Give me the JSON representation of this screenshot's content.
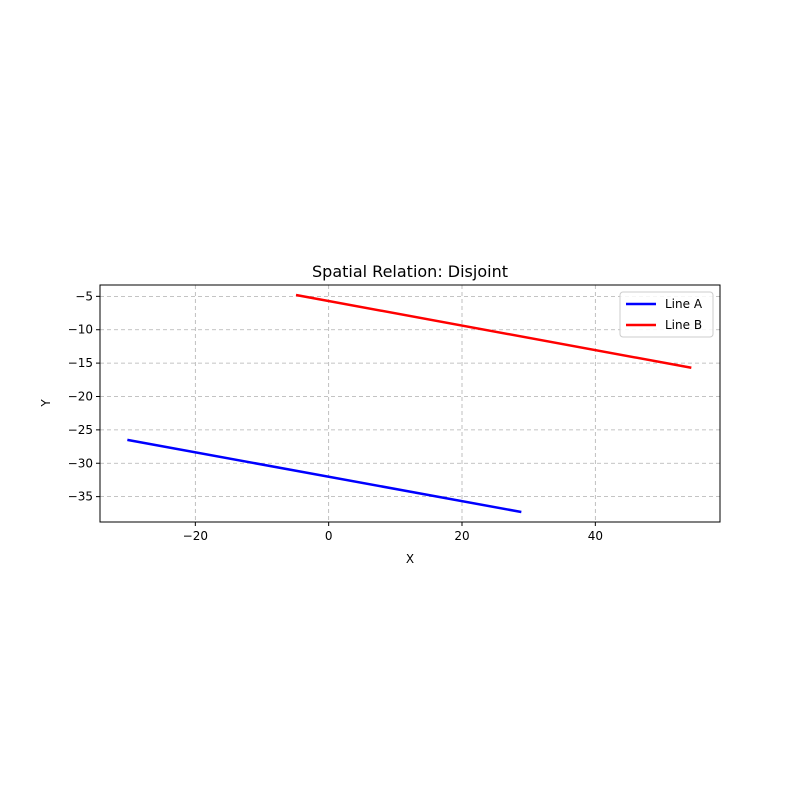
{
  "chart_data": {
    "type": "line",
    "title": "Spatial Relation: Disjoint",
    "xlabel": "X",
    "ylabel": "Y",
    "xlim": [
      -34.3,
      58.7
    ],
    "ylim": [
      -38.8,
      -3.3
    ],
    "xticks": [
      -20,
      0,
      20,
      40
    ],
    "yticks": [
      -5,
      -10,
      -15,
      -20,
      -25,
      -30,
      -35
    ],
    "grid": true,
    "legend_position": "top-right",
    "series": [
      {
        "name": "Line A",
        "color": "#0000ff",
        "x": [
          -30.2,
          28.9
        ],
        "y": [
          -26.5,
          -37.3
        ]
      },
      {
        "name": "Line B",
        "color": "#ff0000",
        "x": [
          -4.9,
          54.4
        ],
        "y": [
          -4.8,
          -15.7
        ]
      }
    ]
  }
}
